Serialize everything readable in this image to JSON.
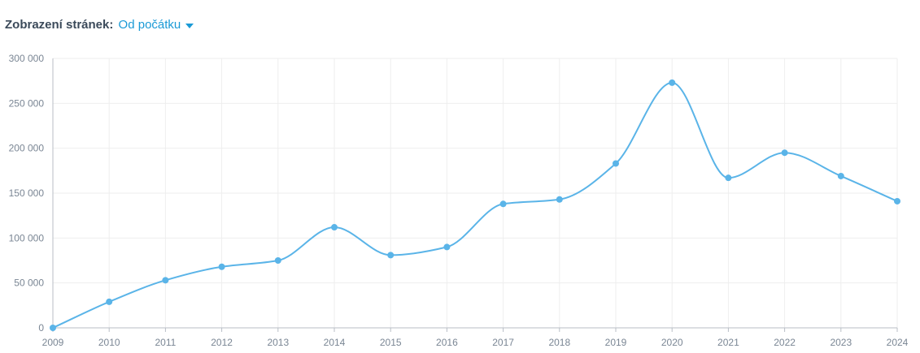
{
  "header": {
    "label": "Zobrazení stránek:",
    "period": "Od počátku"
  },
  "colors": {
    "line": "#5ab4e8",
    "grid": "#eeeeee",
    "axis": "#b8bec6"
  },
  "chart_data": {
    "type": "line",
    "x": [
      "2009",
      "2010",
      "2011",
      "2012",
      "2013",
      "2014",
      "2015",
      "2016",
      "2017",
      "2018",
      "2019",
      "2020",
      "2021",
      "2022",
      "2023",
      "2024"
    ],
    "series": [
      {
        "values": [
          0,
          29000,
          53000,
          68000,
          75000,
          112000,
          81000,
          90000,
          138000,
          143000,
          183000,
          273000,
          167000,
          195000,
          169000,
          141000
        ]
      }
    ],
    "ylim": [
      0,
      300000
    ],
    "yticks": [
      0,
      50000,
      100000,
      150000,
      200000,
      250000,
      300000
    ],
    "ytick_labels": [
      "0",
      "50 000",
      "100 000",
      "150 000",
      "200 000",
      "250 000",
      "300 000"
    ],
    "grid": true
  }
}
